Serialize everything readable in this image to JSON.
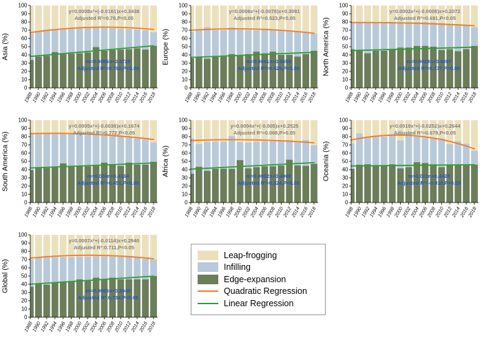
{
  "figure": {
    "background": "#ffffff"
  },
  "legend": {
    "items": [
      {
        "label": "Leap-frogging",
        "type": "swatch",
        "color": "#ECE0BC"
      },
      {
        "label": "Infilling",
        "type": "swatch",
        "color": "#B8C9D9"
      },
      {
        "label": "Edge-expansion",
        "type": "swatch",
        "color": "#6C7D5A"
      },
      {
        "label": "Quadratic Regression",
        "type": "line",
        "color": "#EE7D28"
      },
      {
        "label": "Linear Regression",
        "type": "line",
        "color": "#2FA12F"
      }
    ]
  },
  "chart_data": {
    "type": "bar",
    "stacked": true,
    "unit": "%",
    "ylim": [
      0,
      100
    ],
    "ytick_step": 10,
    "grid": false,
    "categories": [
      "1988",
      "1990",
      "1992",
      "1994",
      "1996",
      "1998",
      "2000",
      "2002",
      "2004",
      "2006",
      "2008",
      "2010",
      "2012",
      "2014",
      "2016",
      "2018"
    ],
    "series_names": [
      "Edge-expansion",
      "Infilling",
      "Leap-frogging"
    ],
    "series_note": "edge_expansion = bottom green segment (%); edge_plus_infilling = cumulative top of blue segment (%); leap-frogging = remainder to 100%",
    "colors": {
      "leap_frogging": "#ECE0BC",
      "infilling": "#B8C9D9",
      "edge_expansion": "#6C7D5A",
      "quad_line": "#EE7D28",
      "lin_line": "#2FA12F",
      "quad_text": "#7F7F7F",
      "lin_text": "#2553C8"
    },
    "panels": [
      {
        "name": "Asia",
        "ylabel": "Asia (%)",
        "edge_expansion": [
          34,
          38,
          39,
          43.5,
          41,
          41.5,
          42,
          43,
          49.5,
          45,
          46,
          46.5,
          47,
          48,
          46.5,
          51
        ],
        "edge_plus_infilling": [
          66,
          69,
          70.5,
          71,
          71.5,
          72,
          72.5,
          73,
          73,
          73,
          72.5,
          72,
          71.5,
          71,
          70,
          67.5
        ],
        "quad": {
          "a": 0.0008,
          "b": -0.0161,
          "c": 0.3438
        },
        "linear": {
          "m": 0.0086,
          "b": 0.3729
        },
        "quad_eq": "y=0.0008x²+(-0.0161)x+0.3438",
        "quad_r2": "Adjusted R²=0.78,P<0.05",
        "lin_eq": "m=0.0086n+0.3729",
        "lin_r2": "Adjusted R²=0.792,P<0.05"
      },
      {
        "name": "Europe",
        "ylabel": "Europe (%)",
        "edge_expansion": [
          36,
          38,
          35.5,
          37.5,
          38,
          41,
          40,
          41,
          44,
          42,
          44,
          40,
          40,
          38,
          41,
          45
        ],
        "edge_plus_infilling": [
          68,
          70,
          74,
          70,
          70,
          73.5,
          71,
          70.5,
          70,
          70,
          70,
          70.5,
          69,
          68,
          67,
          66
        ],
        "quad": {
          "a": 0.0006,
          "b": -0.0078,
          "c": 0.3081
        },
        "linear": {
          "m": 0.0041,
          "b": 0.3659
        },
        "quad_eq": "y=0.0006x²+(-0.0078)x+0.3081",
        "quad_r2": "Adjusted R²=0.523,P<0.05",
        "lin_eq": "m=0.0041n+0.3659",
        "lin_r2": "Adjusted R²=0.425,P<0.05"
      },
      {
        "name": "North America",
        "ylabel": "North America (%)",
        "edge_expansion": [
          47,
          45,
          42,
          45,
          45,
          47,
          49,
          49,
          51,
          51,
          50,
          46,
          47,
          44.5,
          47,
          51
        ],
        "edge_plus_infilling": [
          79,
          80,
          80,
          80,
          80,
          80,
          80,
          80,
          80,
          80,
          79.5,
          79,
          78,
          77,
          76,
          73.5
        ],
        "quad": {
          "a": 0.0002,
          "b": -0.0008,
          "c": 0.2072
        },
        "linear": {
          "m": 0.0028,
          "b": 0.4497
        },
        "quad_eq": "y=0.0002x²+(-0.0008)x+0.2072",
        "quad_r2": "Adjusted R²=0.691,P<0.05",
        "lin_eq": "m=0.0028n+0.4497",
        "lin_r2": "Adjusted R²=0.177,P>0.05"
      },
      {
        "name": "South America",
        "ylabel": "South America (%)",
        "edge_expansion": [
          39.5,
          42,
          42,
          43,
          47.5,
          44,
          44,
          44,
          44.5,
          48.5,
          46,
          44.5,
          48.5,
          46,
          46,
          49.5
        ],
        "edge_plus_infilling": [
          84,
          83,
          83,
          83,
          83,
          83,
          82.5,
          82,
          82,
          81.5,
          81,
          80,
          79,
          78,
          77,
          73
        ],
        "quad": {
          "a": 0.0005,
          "b": -0.0038,
          "c": 0.1674
        },
        "linear": {
          "m": 0.004,
          "b": 0.4164
        },
        "quad_eq": "y=0.0005x²+(-0.0038)x+0.1674",
        "quad_r2": "Adjusted R²=0.772,P<0.05",
        "lin_eq": "m=0.004n+0.4164",
        "lin_r2": "Adjusted R²=0.451,P<0.05"
      },
      {
        "name": "Africa",
        "ylabel": "Africa (%)",
        "edge_expansion": [
          35,
          43.5,
          38.5,
          41,
          41,
          41,
          51.5,
          41.5,
          43,
          44,
          44,
          45,
          52,
          45,
          44.5,
          47
        ],
        "edge_plus_infilling": [
          78,
          71,
          74,
          74,
          74,
          81,
          73.5,
          73,
          74,
          74.5,
          75,
          75,
          76,
          73,
          76,
          69.5
        ],
        "quad": {
          "a": 0.0004,
          "b": -0.005,
          "c": 0.2525
        },
        "linear": {
          "m": 0.0052,
          "b": 0.4008
        },
        "quad_eq": "y=0.0004x²+(-0.005)x+0.2525",
        "quad_r2": "Adjusted R²=0.068,P>0.05",
        "lin_eq": "m=0.0052n+0.4008",
        "lin_r2": "Adjusted R²=0.324,P<0.05"
      },
      {
        "name": "Oceania",
        "ylabel": "Oceania (%)",
        "edge_expansion": [
          41,
          46,
          46.5,
          45,
          45,
          46.5,
          41.5,
          43,
          49,
          48,
          46.5,
          43,
          45.5,
          45.5,
          45.5,
          46
        ],
        "edge_plus_infilling": [
          72,
          84,
          79,
          80,
          80,
          83,
          75.5,
          84,
          80,
          79,
          78,
          78,
          71,
          74.5,
          71.5,
          63
        ],
        "quad": {
          "a": 0.0019,
          "b": -0.0252,
          "c": 0.2644
        },
        "linear": {
          "m": 0.001,
          "b": 0.4428
        },
        "quad_eq": "y=0.0019x²+(-0.0252)x+0.2644",
        "quad_r2": "Adjusted R²=0.679,P<0.05",
        "lin_eq": "m=0.001n+0.4428",
        "lin_r2": "Adjusted R²=-0.019,P>0.05"
      },
      {
        "name": "Global",
        "ylabel": "Global (%)",
        "edge_expansion": [
          37,
          41,
          39.5,
          42,
          42.5,
          43,
          46,
          44.5,
          48,
          46,
          48,
          46,
          46,
          46,
          46,
          50
        ],
        "edge_plus_infilling": [
          70,
          72,
          74.5,
          73,
          73,
          73,
          73.5,
          73.5,
          74,
          74,
          74,
          73.5,
          73,
          72.5,
          71,
          70
        ],
        "quad": {
          "a": 0.0007,
          "b": -0.0114,
          "c": 0.294
        },
        "linear": {
          "m": 0.0065,
          "b": 0.394
        },
        "quad_eq": "y=0.0007x²+(-0.0114)x+0.2940",
        "quad_r2": "Adjusted R²:0.711,P<0.05",
        "lin_eq": "m=0.0065n+0.3940",
        "lin_r2": "Adjusted R²:0.734,P<0.05"
      }
    ]
  }
}
